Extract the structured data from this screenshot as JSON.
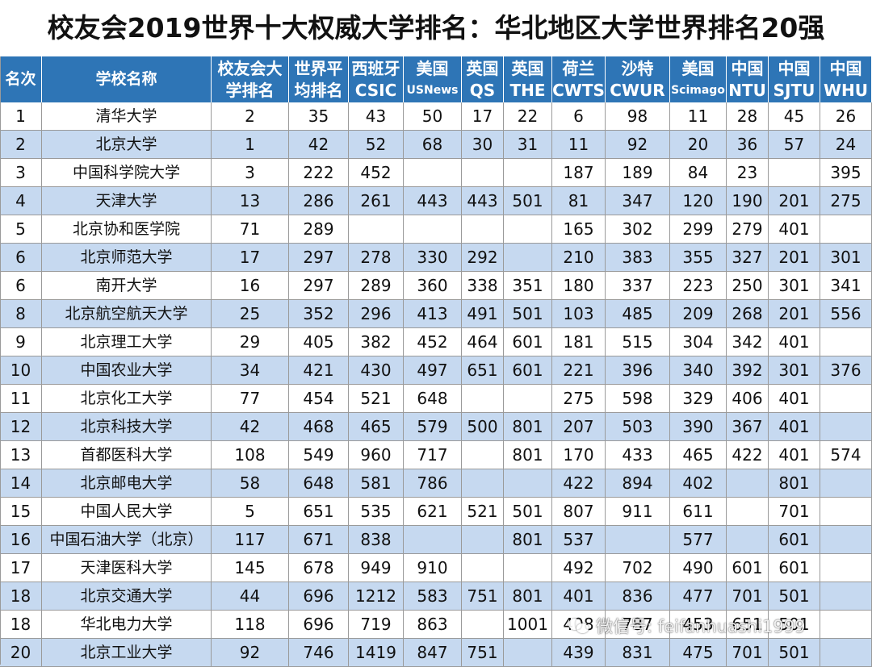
{
  "title": "校友会2019世界十大权威大学排名：华北地区大学世界排名20强",
  "columns": [
    {
      "key": "rank",
      "l1": "名次",
      "l2": ""
    },
    {
      "key": "school",
      "l1": "学校名称",
      "l2": ""
    },
    {
      "key": "cuaa",
      "l1": "校友会大",
      "l2": "学排名"
    },
    {
      "key": "avg",
      "l1": "世界平",
      "l2": "均排名"
    },
    {
      "key": "csic",
      "l1": "西班牙",
      "l2": "CSIC"
    },
    {
      "key": "usnews",
      "l1": "美国",
      "l2": "USNews"
    },
    {
      "key": "qs",
      "l1": "英国",
      "l2": "QS"
    },
    {
      "key": "the",
      "l1": "英国",
      "l2": "THE"
    },
    {
      "key": "cwts",
      "l1": "荷兰",
      "l2": "CWTS"
    },
    {
      "key": "cwur",
      "l1": "沙特",
      "l2": "CWUR"
    },
    {
      "key": "scimago",
      "l1": "美国",
      "l2": "Scimago"
    },
    {
      "key": "ntu",
      "l1": "中国",
      "l2": "NTU"
    },
    {
      "key": "sjtu",
      "l1": "中国",
      "l2": "SJTU"
    },
    {
      "key": "whu",
      "l1": "中国",
      "l2": "WHU"
    }
  ],
  "rows": [
    [
      "1",
      "清华大学",
      "2",
      "35",
      "43",
      "50",
      "17",
      "22",
      "6",
      "98",
      "11",
      "28",
      "45",
      "26"
    ],
    [
      "2",
      "北京大学",
      "1",
      "42",
      "52",
      "68",
      "30",
      "31",
      "11",
      "92",
      "20",
      "36",
      "57",
      "24"
    ],
    [
      "3",
      "中国科学院大学",
      "3",
      "222",
      "452",
      "",
      "",
      "",
      "187",
      "189",
      "84",
      "23",
      "",
      "395"
    ],
    [
      "4",
      "天津大学",
      "13",
      "286",
      "261",
      "443",
      "443",
      "501",
      "81",
      "347",
      "120",
      "190",
      "201",
      "275"
    ],
    [
      "5",
      "北京协和医学院",
      "71",
      "289",
      "",
      "",
      "",
      "",
      "165",
      "302",
      "299",
      "279",
      "401",
      ""
    ],
    [
      "6",
      "北京师范大学",
      "17",
      "297",
      "278",
      "330",
      "292",
      "",
      "210",
      "383",
      "355",
      "327",
      "201",
      "301"
    ],
    [
      "6",
      "南开大学",
      "16",
      "297",
      "289",
      "360",
      "338",
      "351",
      "180",
      "337",
      "223",
      "250",
      "301",
      "341"
    ],
    [
      "8",
      "北京航空航天大学",
      "25",
      "352",
      "296",
      "413",
      "491",
      "501",
      "103",
      "485",
      "209",
      "268",
      "201",
      "556"
    ],
    [
      "9",
      "北京理工大学",
      "29",
      "405",
      "382",
      "452",
      "464",
      "601",
      "181",
      "515",
      "304",
      "342",
      "401",
      ""
    ],
    [
      "10",
      "中国农业大学",
      "34",
      "421",
      "430",
      "497",
      "651",
      "601",
      "221",
      "396",
      "340",
      "392",
      "301",
      "376"
    ],
    [
      "11",
      "北京化工大学",
      "77",
      "454",
      "521",
      "648",
      "",
      "",
      "275",
      "598",
      "329",
      "406",
      "401",
      ""
    ],
    [
      "12",
      "北京科技大学",
      "42",
      "468",
      "465",
      "579",
      "500",
      "801",
      "207",
      "503",
      "390",
      "367",
      "401",
      ""
    ],
    [
      "13",
      "首都医科大学",
      "108",
      "549",
      "960",
      "717",
      "",
      "801",
      "170",
      "433",
      "465",
      "422",
      "401",
      "574"
    ],
    [
      "14",
      "北京邮电大学",
      "58",
      "648",
      "581",
      "786",
      "",
      "",
      "422",
      "894",
      "402",
      "",
      "801",
      ""
    ],
    [
      "15",
      "中国人民大学",
      "5",
      "651",
      "535",
      "621",
      "521",
      "501",
      "807",
      "911",
      "611",
      "",
      "701",
      ""
    ],
    [
      "16",
      "中国石油大学（北京）",
      "117",
      "671",
      "838",
      "",
      "",
      "801",
      "537",
      "",
      "577",
      "",
      "601",
      ""
    ],
    [
      "17",
      "天津医科大学",
      "145",
      "678",
      "949",
      "910",
      "",
      "",
      "492",
      "702",
      "490",
      "601",
      "601",
      ""
    ],
    [
      "18",
      "北京交通大学",
      "44",
      "696",
      "1212",
      "583",
      "751",
      "801",
      "401",
      "836",
      "477",
      "701",
      "501",
      ""
    ],
    [
      "18",
      "华北电力大学",
      "118",
      "696",
      "719",
      "863",
      "",
      "1001",
      "408",
      "787",
      "453",
      "651",
      "501",
      ""
    ],
    [
      "20",
      "北京工业大学",
      "92",
      "746",
      "1419",
      "847",
      "751",
      "",
      "439",
      "831",
      "475",
      "701",
      "501",
      ""
    ]
  ],
  "watermark": {
    "text": "微信号: feifanhuashi1999",
    "icon": "wechat-icon"
  },
  "colors": {
    "header_bg": "#2e75b6",
    "row_alt_bg": "#c6d9f0"
  }
}
